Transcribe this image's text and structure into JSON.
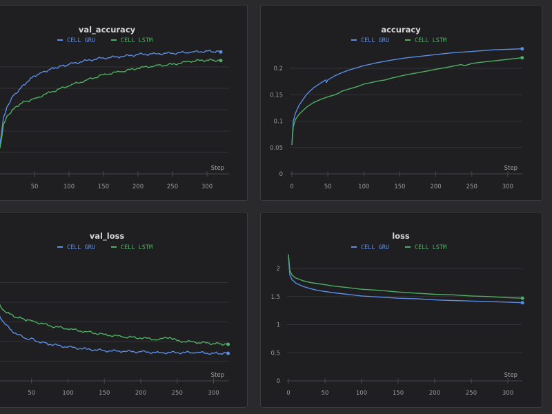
{
  "colors": {
    "gru": "#5b8ee6",
    "lstm": "#4fb063",
    "background": "#2a292c",
    "panel": "#1f1e21"
  },
  "legend": {
    "gru": "CELL GRU",
    "lstm": "CELL LSTM"
  },
  "chart_data": [
    {
      "id": "val_accuracy",
      "type": "line",
      "title": "val_accuracy",
      "xlabel": "Step",
      "ylabel": "",
      "xlim": [
        0,
        320
      ],
      "ylim": [
        0,
        0.3
      ],
      "xticks": [
        50,
        100,
        150,
        200,
        250,
        300
      ],
      "yticks": [],
      "grid": true,
      "legend_position": "top-center",
      "series": [
        {
          "name": "CELL GRU",
          "x": [
            0,
            5,
            10,
            20,
            30,
            40,
            50,
            60,
            80,
            100,
            125,
            150,
            175,
            200,
            225,
            250,
            275,
            300,
            320
          ],
          "values": [
            0.068,
            0.132,
            0.156,
            0.184,
            0.2,
            0.216,
            0.229,
            0.237,
            0.248,
            0.256,
            0.265,
            0.271,
            0.274,
            0.279,
            0.281,
            0.282,
            0.284,
            0.287,
            0.285
          ]
        },
        {
          "name": "CELL LSTM",
          "x": [
            0,
            5,
            10,
            20,
            30,
            50,
            75,
            100,
            125,
            150,
            175,
            200,
            225,
            250,
            275,
            300,
            320
          ],
          "values": [
            0.06,
            0.116,
            0.135,
            0.152,
            0.165,
            0.176,
            0.192,
            0.206,
            0.219,
            0.232,
            0.239,
            0.247,
            0.253,
            0.256,
            0.263,
            0.266,
            0.265
          ]
        }
      ]
    },
    {
      "id": "accuracy",
      "type": "line",
      "title": "accuracy",
      "xlabel": "Step",
      "ylabel": "",
      "xlim": [
        0,
        320
      ],
      "ylim": [
        0,
        0.24
      ],
      "xticks": [
        0,
        50,
        100,
        150,
        200,
        250,
        300
      ],
      "yticks": [
        "0",
        "0.05",
        "0.1",
        "0.15",
        "0.2"
      ],
      "grid": true,
      "legend_position": "top-center",
      "series": [
        {
          "name": "CELL GRU",
          "x": [
            0,
            2,
            5,
            10,
            20,
            30,
            40,
            47,
            48,
            50,
            60,
            70,
            80,
            90,
            100,
            120,
            140,
            160,
            180,
            200,
            220,
            240,
            260,
            280,
            300,
            320
          ],
          "values": [
            0.055,
            0.1,
            0.115,
            0.13,
            0.15,
            0.163,
            0.172,
            0.178,
            0.173,
            0.178,
            0.186,
            0.192,
            0.197,
            0.201,
            0.205,
            0.211,
            0.216,
            0.22,
            0.223,
            0.226,
            0.229,
            0.231,
            0.233,
            0.235,
            0.236,
            0.237
          ]
        },
        {
          "name": "CELL LSTM",
          "x": [
            0,
            2,
            5,
            10,
            20,
            30,
            40,
            50,
            60,
            65,
            70,
            80,
            90,
            100,
            120,
            130,
            140,
            160,
            180,
            200,
            220,
            235,
            240,
            250,
            260,
            280,
            300,
            320
          ],
          "values": [
            0.055,
            0.09,
            0.103,
            0.113,
            0.126,
            0.135,
            0.141,
            0.146,
            0.15,
            0.153,
            0.157,
            0.161,
            0.165,
            0.17,
            0.176,
            0.178,
            0.182,
            0.188,
            0.193,
            0.198,
            0.203,
            0.207,
            0.205,
            0.209,
            0.211,
            0.214,
            0.217,
            0.22
          ]
        }
      ]
    },
    {
      "id": "val_loss",
      "type": "line",
      "title": "val_loss",
      "xlabel": "Step",
      "ylabel": "",
      "xlim": [
        0,
        320
      ],
      "ylim": [
        0,
        2.5
      ],
      "xticks": [
        50,
        100,
        150,
        200,
        250,
        300
      ],
      "yticks": [],
      "grid": true,
      "legend_position": "top-center",
      "series": [
        {
          "name": "CELL GRU",
          "x": [
            0,
            5,
            10,
            20,
            30,
            45,
            50,
            55,
            75,
            100,
            125,
            150,
            175,
            200,
            225,
            250,
            275,
            300,
            320
          ],
          "values": [
            1.96,
            1.7,
            1.53,
            1.32,
            1.18,
            1.05,
            1.09,
            1.02,
            0.93,
            0.86,
            0.81,
            0.77,
            0.75,
            0.74,
            0.72,
            0.72,
            0.72,
            0.7,
            0.7
          ]
        },
        {
          "name": "CELL LSTM",
          "x": [
            0,
            5,
            10,
            20,
            30,
            50,
            75,
            100,
            125,
            150,
            175,
            200,
            225,
            240,
            250,
            275,
            300,
            320
          ],
          "values": [
            2.23,
            2.0,
            1.82,
            1.7,
            1.61,
            1.53,
            1.4,
            1.32,
            1.25,
            1.18,
            1.12,
            1.09,
            1.05,
            1.11,
            1.02,
            0.98,
            0.95,
            0.93
          ]
        }
      ]
    },
    {
      "id": "loss",
      "type": "line",
      "title": "loss",
      "xlabel": "Step",
      "ylabel": "",
      "xlim": [
        0,
        320
      ],
      "ylim": [
        0,
        2.2
      ],
      "xticks": [
        0,
        50,
        100,
        150,
        200,
        250,
        300
      ],
      "yticks": [
        "0",
        "0.5",
        "1",
        "1.5",
        "2"
      ],
      "grid": true,
      "legend_position": "top-center",
      "series": [
        {
          "name": "CELL GRU",
          "x": [
            0,
            2,
            5,
            10,
            20,
            30,
            40,
            50,
            60,
            80,
            100,
            125,
            150,
            175,
            200,
            225,
            250,
            275,
            300,
            320
          ],
          "values": [
            2.2,
            1.88,
            1.8,
            1.74,
            1.68,
            1.64,
            1.61,
            1.59,
            1.57,
            1.54,
            1.51,
            1.49,
            1.47,
            1.46,
            1.44,
            1.43,
            1.42,
            1.41,
            1.4,
            1.39
          ]
        },
        {
          "name": "CELL LSTM",
          "x": [
            0,
            2,
            5,
            10,
            20,
            30,
            40,
            50,
            60,
            80,
            100,
            125,
            150,
            175,
            200,
            225,
            250,
            275,
            300,
            320
          ],
          "values": [
            2.25,
            1.96,
            1.88,
            1.83,
            1.78,
            1.75,
            1.73,
            1.71,
            1.69,
            1.66,
            1.63,
            1.61,
            1.58,
            1.56,
            1.54,
            1.53,
            1.51,
            1.5,
            1.48,
            1.47
          ]
        }
      ]
    }
  ]
}
